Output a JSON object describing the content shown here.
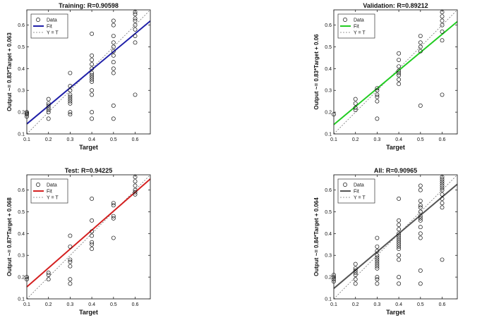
{
  "chart_data": [
    {
      "type": "scatter",
      "title": "Training: R=0.90598",
      "xlabel": "Target",
      "ylabel": "Output ~= 0.83*Target + 0.063",
      "xlim": [
        0.1,
        0.67
      ],
      "ylim": [
        0.1,
        0.67
      ],
      "xticks": [
        "0.1",
        "0.2",
        "0.3",
        "0.4",
        "0.5",
        "0.6"
      ],
      "yticks": [
        "0.1",
        "0.2",
        "0.3",
        "0.4",
        "0.5",
        "0.6"
      ],
      "fit": {
        "slope": 0.83,
        "intercept": 0.063,
        "color": "#1f1fa8"
      },
      "legend": [
        "Data",
        "Fit",
        "Y = T"
      ],
      "legend_position": "top-left",
      "grid": false,
      "points": [
        [
          0.1,
          0.18
        ],
        [
          0.1,
          0.19
        ],
        [
          0.1,
          0.195
        ],
        [
          0.1,
          0.2
        ],
        [
          0.2,
          0.17
        ],
        [
          0.2,
          0.2
        ],
        [
          0.2,
          0.21
        ],
        [
          0.2,
          0.22
        ],
        [
          0.2,
          0.23
        ],
        [
          0.2,
          0.24
        ],
        [
          0.2,
          0.26
        ],
        [
          0.3,
          0.19
        ],
        [
          0.3,
          0.2
        ],
        [
          0.3,
          0.24
        ],
        [
          0.3,
          0.25
        ],
        [
          0.3,
          0.26
        ],
        [
          0.3,
          0.27
        ],
        [
          0.3,
          0.28
        ],
        [
          0.3,
          0.3
        ],
        [
          0.3,
          0.32
        ],
        [
          0.3,
          0.38
        ],
        [
          0.4,
          0.17
        ],
        [
          0.4,
          0.2
        ],
        [
          0.4,
          0.28
        ],
        [
          0.4,
          0.3
        ],
        [
          0.4,
          0.34
        ],
        [
          0.4,
          0.35
        ],
        [
          0.4,
          0.36
        ],
        [
          0.4,
          0.37
        ],
        [
          0.4,
          0.38
        ],
        [
          0.4,
          0.4
        ],
        [
          0.4,
          0.42
        ],
        [
          0.4,
          0.44
        ],
        [
          0.4,
          0.46
        ],
        [
          0.4,
          0.56
        ],
        [
          0.5,
          0.17
        ],
        [
          0.5,
          0.23
        ],
        [
          0.5,
          0.38
        ],
        [
          0.5,
          0.4
        ],
        [
          0.5,
          0.43
        ],
        [
          0.5,
          0.46
        ],
        [
          0.5,
          0.48
        ],
        [
          0.5,
          0.5
        ],
        [
          0.5,
          0.52
        ],
        [
          0.5,
          0.55
        ],
        [
          0.5,
          0.6
        ],
        [
          0.5,
          0.62
        ],
        [
          0.6,
          0.28
        ],
        [
          0.6,
          0.52
        ],
        [
          0.6,
          0.55
        ],
        [
          0.6,
          0.58
        ],
        [
          0.6,
          0.6
        ],
        [
          0.6,
          0.62
        ],
        [
          0.6,
          0.63
        ],
        [
          0.6,
          0.65
        ],
        [
          0.6,
          0.66
        ]
      ]
    },
    {
      "type": "scatter",
      "title": "Validation: R=0.89212",
      "xlabel": "Target",
      "ylabel": "Output ~= 0.83*Target + 0.06",
      "xlim": [
        0.1,
        0.67
      ],
      "ylim": [
        0.1,
        0.67
      ],
      "xticks": [
        "0.1",
        "0.2",
        "0.3",
        "0.4",
        "0.5",
        "0.6"
      ],
      "yticks": [
        "0.1",
        "0.2",
        "0.3",
        "0.4",
        "0.5",
        "0.6"
      ],
      "fit": {
        "slope": 0.83,
        "intercept": 0.06,
        "color": "#22cc22"
      },
      "legend": [
        "Data",
        "Fit",
        "Y = T"
      ],
      "legend_position": "top-left",
      "grid": false,
      "points": [
        [
          0.1,
          0.19
        ],
        [
          0.2,
          0.21
        ],
        [
          0.2,
          0.22
        ],
        [
          0.2,
          0.24
        ],
        [
          0.2,
          0.26
        ],
        [
          0.3,
          0.17
        ],
        [
          0.3,
          0.25
        ],
        [
          0.3,
          0.27
        ],
        [
          0.3,
          0.28
        ],
        [
          0.3,
          0.3
        ],
        [
          0.3,
          0.31
        ],
        [
          0.4,
          0.33
        ],
        [
          0.4,
          0.35
        ],
        [
          0.4,
          0.37
        ],
        [
          0.4,
          0.38
        ],
        [
          0.4,
          0.39
        ],
        [
          0.4,
          0.41
        ],
        [
          0.4,
          0.44
        ],
        [
          0.4,
          0.47
        ],
        [
          0.5,
          0.23
        ],
        [
          0.5,
          0.48
        ],
        [
          0.5,
          0.5
        ],
        [
          0.5,
          0.52
        ],
        [
          0.5,
          0.55
        ],
        [
          0.6,
          0.28
        ],
        [
          0.6,
          0.53
        ],
        [
          0.6,
          0.57
        ],
        [
          0.6,
          0.6
        ],
        [
          0.6,
          0.62
        ],
        [
          0.6,
          0.64
        ],
        [
          0.6,
          0.66
        ]
      ]
    },
    {
      "type": "scatter",
      "title": "Test: R=0.94225",
      "xlabel": "Target",
      "ylabel": "Output ~= 0.87*Target + 0.068",
      "xlim": [
        0.1,
        0.67
      ],
      "ylim": [
        0.1,
        0.67
      ],
      "xticks": [
        "0.1",
        "0.2",
        "0.3",
        "0.4",
        "0.5",
        "0.6"
      ],
      "yticks": [
        "0.1",
        "0.2",
        "0.3",
        "0.4",
        "0.5",
        "0.6"
      ],
      "fit": {
        "slope": 0.87,
        "intercept": 0.068,
        "color": "#d42020"
      },
      "legend": [
        "Data",
        "Fit",
        "Y = T"
      ],
      "legend_position": "top-left",
      "grid": false,
      "points": [
        [
          0.1,
          0.19
        ],
        [
          0.1,
          0.2
        ],
        [
          0.2,
          0.19
        ],
        [
          0.2,
          0.21
        ],
        [
          0.2,
          0.22
        ],
        [
          0.3,
          0.17
        ],
        [
          0.3,
          0.19
        ],
        [
          0.3,
          0.25
        ],
        [
          0.3,
          0.27
        ],
        [
          0.3,
          0.28
        ],
        [
          0.3,
          0.34
        ],
        [
          0.3,
          0.39
        ],
        [
          0.4,
          0.33
        ],
        [
          0.4,
          0.35
        ],
        [
          0.4,
          0.36
        ],
        [
          0.4,
          0.39
        ],
        [
          0.4,
          0.41
        ],
        [
          0.4,
          0.46
        ],
        [
          0.4,
          0.56
        ],
        [
          0.5,
          0.38
        ],
        [
          0.5,
          0.47
        ],
        [
          0.5,
          0.48
        ],
        [
          0.5,
          0.53
        ],
        [
          0.5,
          0.54
        ],
        [
          0.6,
          0.58
        ],
        [
          0.6,
          0.59
        ],
        [
          0.6,
          0.6
        ],
        [
          0.6,
          0.62
        ],
        [
          0.6,
          0.64
        ],
        [
          0.6,
          0.66
        ]
      ]
    },
    {
      "type": "scatter",
      "title": "All: R=0.90965",
      "xlabel": "Target",
      "ylabel": "Output ~= 0.84*Target + 0.064",
      "xlim": [
        0.1,
        0.67
      ],
      "ylim": [
        0.1,
        0.67
      ],
      "xticks": [
        "0.1",
        "0.2",
        "0.3",
        "0.4",
        "0.5",
        "0.6"
      ],
      "yticks": [
        "0.1",
        "0.2",
        "0.3",
        "0.4",
        "0.5",
        "0.6"
      ],
      "fit": {
        "slope": 0.84,
        "intercept": 0.064,
        "color": "#555555"
      },
      "legend": [
        "Data",
        "Fit",
        "Y = T"
      ],
      "legend_position": "top-left",
      "grid": false,
      "points": [
        [
          0.1,
          0.18
        ],
        [
          0.1,
          0.19
        ],
        [
          0.1,
          0.2
        ],
        [
          0.1,
          0.21
        ],
        [
          0.2,
          0.17
        ],
        [
          0.2,
          0.19
        ],
        [
          0.2,
          0.21
        ],
        [
          0.2,
          0.22
        ],
        [
          0.2,
          0.23
        ],
        [
          0.2,
          0.24
        ],
        [
          0.2,
          0.26
        ],
        [
          0.3,
          0.17
        ],
        [
          0.3,
          0.19
        ],
        [
          0.3,
          0.2
        ],
        [
          0.3,
          0.24
        ],
        [
          0.3,
          0.25
        ],
        [
          0.3,
          0.26
        ],
        [
          0.3,
          0.27
        ],
        [
          0.3,
          0.28
        ],
        [
          0.3,
          0.29
        ],
        [
          0.3,
          0.3
        ],
        [
          0.3,
          0.32
        ],
        [
          0.3,
          0.34
        ],
        [
          0.3,
          0.38
        ],
        [
          0.4,
          0.17
        ],
        [
          0.4,
          0.2
        ],
        [
          0.4,
          0.28
        ],
        [
          0.4,
          0.3
        ],
        [
          0.4,
          0.33
        ],
        [
          0.4,
          0.34
        ],
        [
          0.4,
          0.35
        ],
        [
          0.4,
          0.36
        ],
        [
          0.4,
          0.37
        ],
        [
          0.4,
          0.38
        ],
        [
          0.4,
          0.39
        ],
        [
          0.4,
          0.4
        ],
        [
          0.4,
          0.42
        ],
        [
          0.4,
          0.44
        ],
        [
          0.4,
          0.46
        ],
        [
          0.4,
          0.56
        ],
        [
          0.5,
          0.17
        ],
        [
          0.5,
          0.23
        ],
        [
          0.5,
          0.38
        ],
        [
          0.5,
          0.4
        ],
        [
          0.5,
          0.43
        ],
        [
          0.5,
          0.46
        ],
        [
          0.5,
          0.47
        ],
        [
          0.5,
          0.48
        ],
        [
          0.5,
          0.5
        ],
        [
          0.5,
          0.52
        ],
        [
          0.5,
          0.53
        ],
        [
          0.5,
          0.55
        ],
        [
          0.5,
          0.6
        ],
        [
          0.5,
          0.62
        ],
        [
          0.6,
          0.28
        ],
        [
          0.6,
          0.52
        ],
        [
          0.6,
          0.54
        ],
        [
          0.6,
          0.56
        ],
        [
          0.6,
          0.58
        ],
        [
          0.6,
          0.6
        ],
        [
          0.6,
          0.61
        ],
        [
          0.6,
          0.62
        ],
        [
          0.6,
          0.63
        ],
        [
          0.6,
          0.64
        ],
        [
          0.6,
          0.65
        ],
        [
          0.6,
          0.66
        ]
      ]
    }
  ]
}
